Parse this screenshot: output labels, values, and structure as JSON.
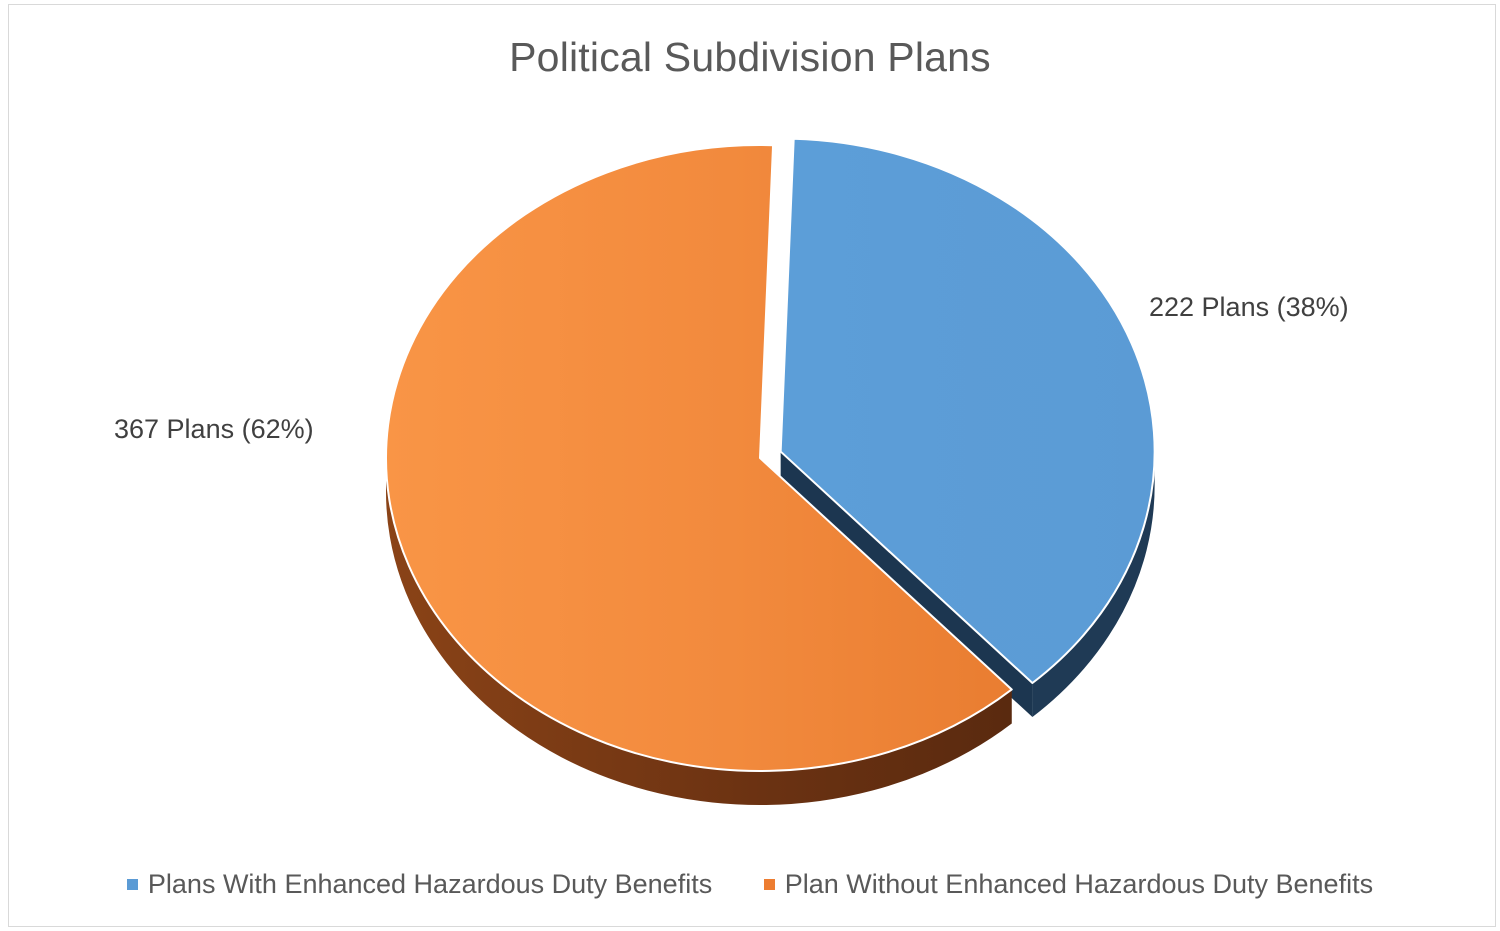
{
  "chart_data": {
    "type": "pie",
    "title": "Political Subdivision Plans",
    "slices": [
      {
        "name": "Plans With Enhanced Hazardous Duty Benefits",
        "value": 222,
        "percent": 38,
        "label": "222 Plans (38%)",
        "color": "#5b9bd5",
        "side_color": "#1f3b57",
        "exploded": true
      },
      {
        "name": "Plan Without Enhanced Hazardous Duty Benefits",
        "value": 367,
        "percent": 62,
        "label": "367 Plans (62%)",
        "color": "#ed7d31",
        "side_color": "#6b3514",
        "exploded": false
      }
    ],
    "legend_position": "bottom",
    "style": "3d-exploded"
  }
}
